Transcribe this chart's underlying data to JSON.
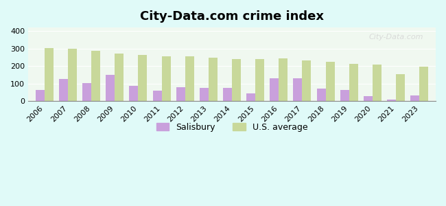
{
  "title": "City-Data.com crime index",
  "years": [
    2006,
    2007,
    2008,
    2009,
    2010,
    2011,
    2012,
    2013,
    2014,
    2015,
    2016,
    2017,
    2018,
    2019,
    2020,
    2021,
    2023
  ],
  "salisbury": [
    65,
    125,
    103,
    148,
    85,
    58,
    78,
    75,
    75,
    42,
    130,
    130,
    72,
    62,
    27,
    10,
    30
  ],
  "us_average": [
    301,
    298,
    288,
    272,
    262,
    256,
    254,
    246,
    238,
    238,
    242,
    233,
    226,
    214,
    208,
    152,
    198
  ],
  "salisbury_color": "#c9a0dc",
  "us_avg_color": "#c8d89a",
  "background_color": "#e0faf8",
  "plot_bg_color": "#f0f8f0",
  "bar_width": 0.38,
  "ylim": [
    0,
    420
  ],
  "yticks": [
    0,
    100,
    200,
    300,
    400
  ],
  "watermark_text": "City-Data.com",
  "legend_salisbury": "Salisbury",
  "legend_us": "U.S. average"
}
